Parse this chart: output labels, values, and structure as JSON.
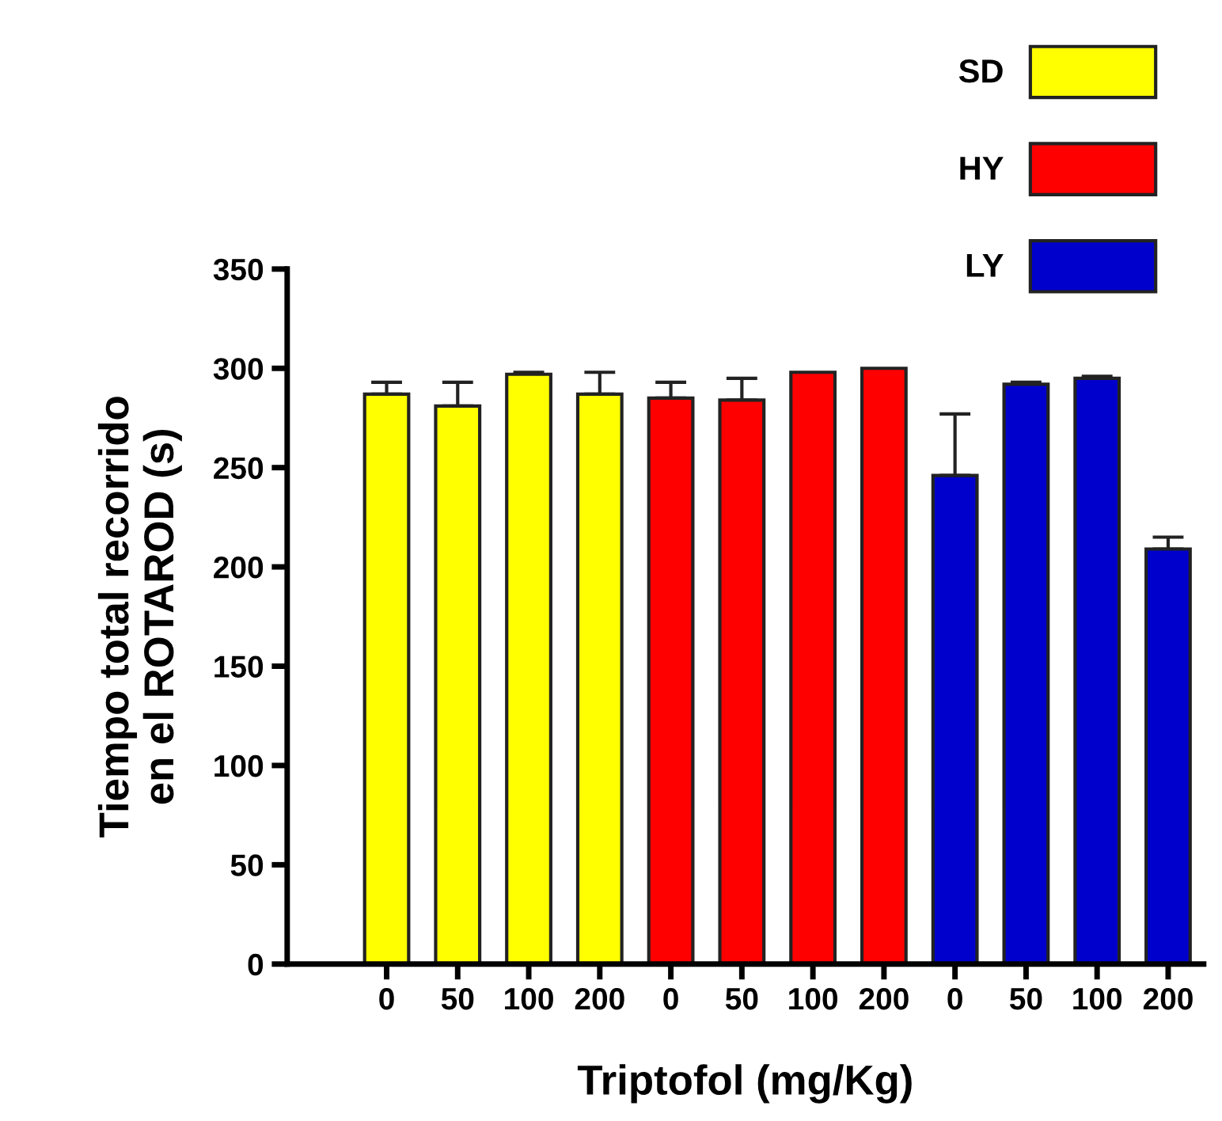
{
  "chart_data": {
    "type": "bar",
    "xlabel": "Triptofol (mg/Kg)",
    "ylabel": "Tiempo total recorrido\nen el ROTAROD (s)",
    "categories": [
      "0",
      "50",
      "100",
      "200",
      "0",
      "50",
      "100",
      "200",
      "0",
      "50",
      "100",
      "200"
    ],
    "series": [
      {
        "name": "SD",
        "color": "#ffff00",
        "values": [
          287,
          281,
          297,
          287,
          null,
          null,
          null,
          null,
          null,
          null,
          null,
          null
        ],
        "errors": [
          6,
          12,
          1,
          11,
          null,
          null,
          null,
          null,
          null,
          null,
          null,
          null
        ]
      },
      {
        "name": "HY",
        "color": "#ff0000",
        "values": [
          null,
          null,
          null,
          null,
          285,
          284,
          298,
          300,
          null,
          null,
          null,
          null
        ],
        "errors": [
          null,
          null,
          null,
          null,
          8,
          11,
          null,
          null,
          null,
          null,
          null,
          null
        ]
      },
      {
        "name": "LY",
        "color": "#0000cc",
        "values": [
          null,
          null,
          null,
          null,
          null,
          null,
          null,
          null,
          246,
          292,
          295,
          209
        ],
        "errors": [
          null,
          null,
          null,
          null,
          null,
          null,
          null,
          null,
          31,
          1,
          1,
          6
        ]
      }
    ],
    "ylim": [
      0,
      350
    ],
    "yticks": [
      0,
      50,
      100,
      150,
      200,
      250,
      300,
      350
    ],
    "grid": false,
    "legend": "top right"
  }
}
